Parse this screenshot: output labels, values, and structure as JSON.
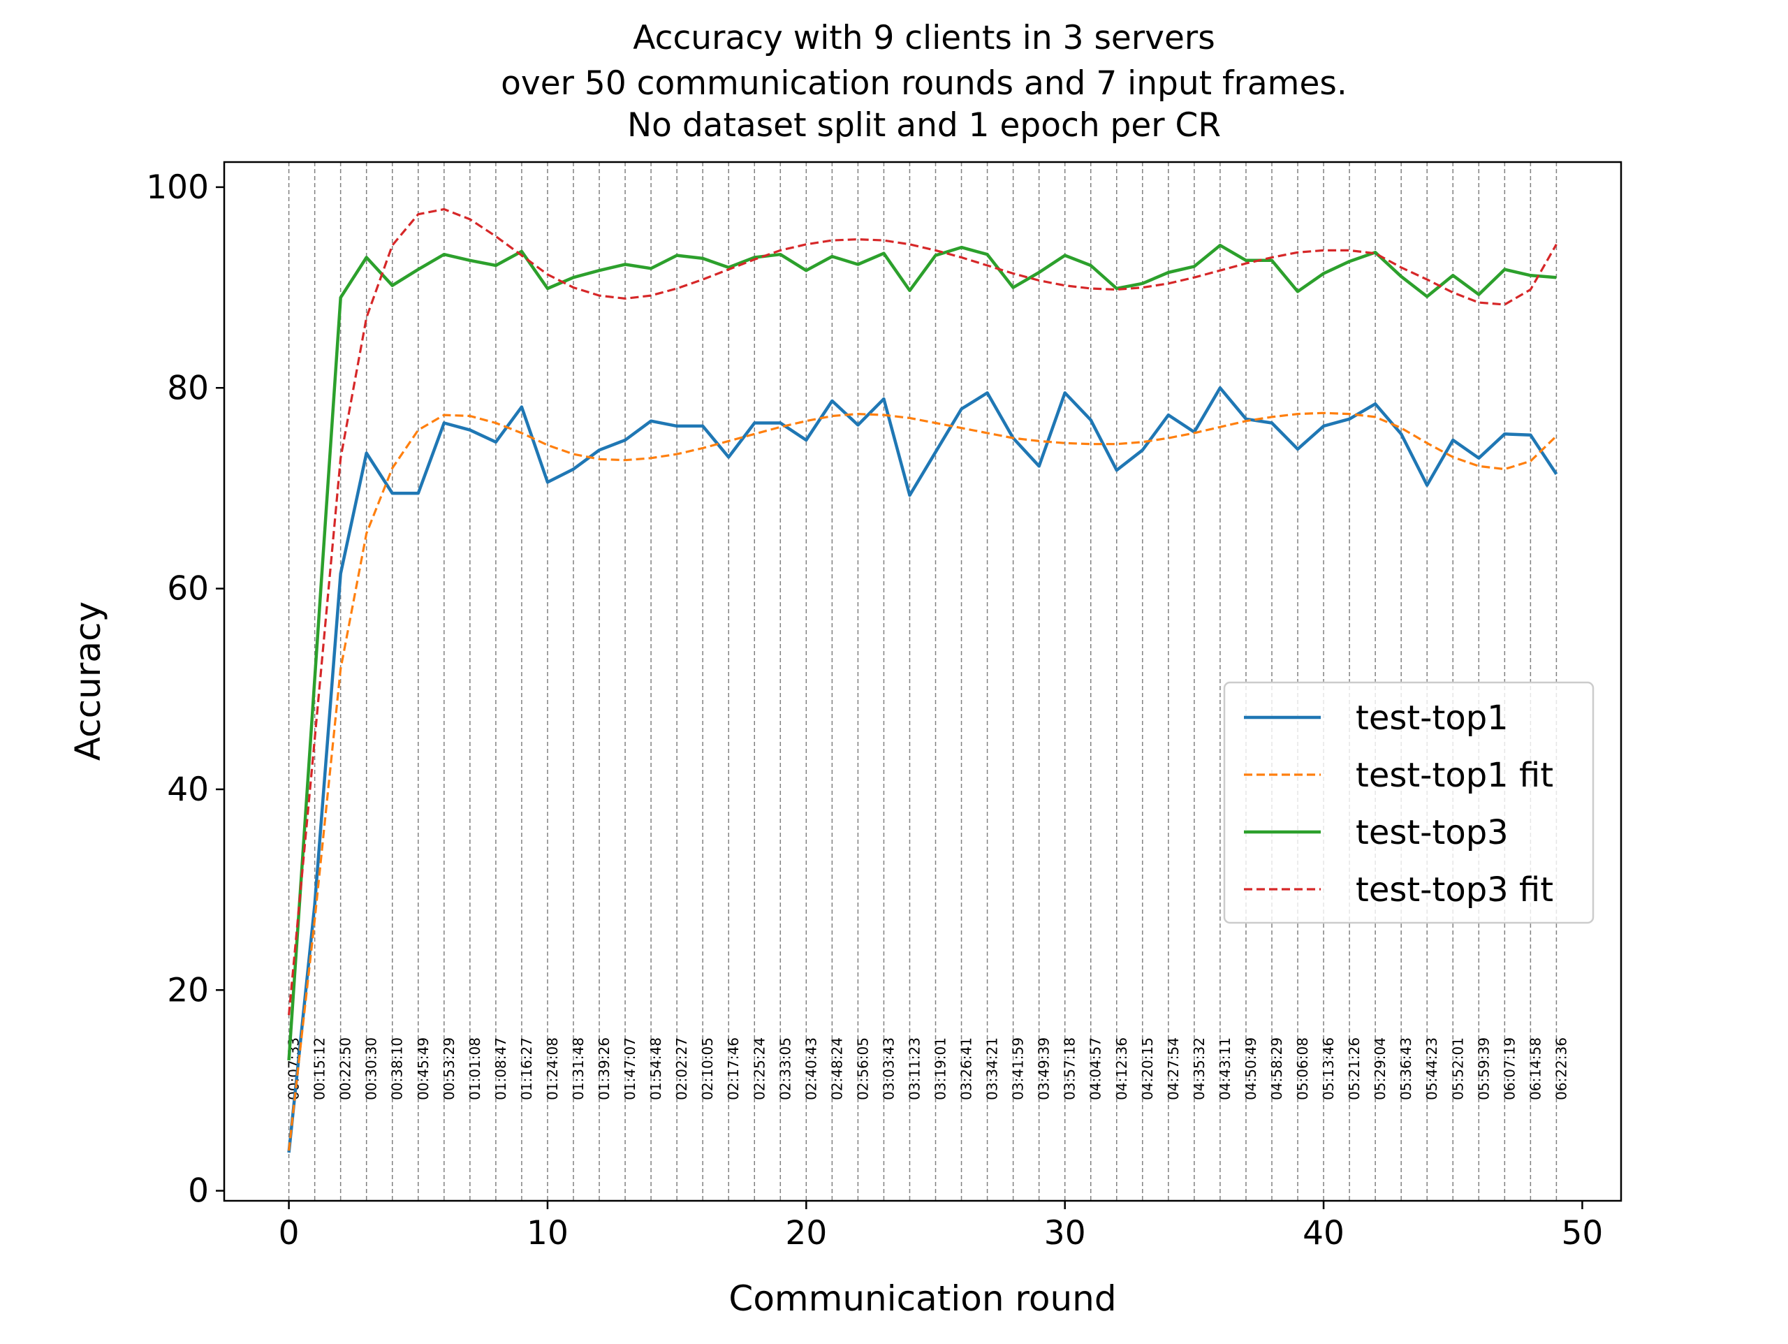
{
  "chart_data": {
    "type": "line",
    "title": "Accuracy with 9 clients in 3 servers\nover 50 communication rounds and 7 input frames.\nNo dataset split and 1 epoch per CR",
    "xlabel": "Communication round",
    "ylabel": "Accuracy",
    "xlim": [
      -2.5,
      51.5
    ],
    "ylim": [
      -1,
      102.5
    ],
    "xticks": [
      0,
      10,
      20,
      30,
      40,
      50
    ],
    "yticks": [
      0,
      20,
      40,
      60,
      80,
      100
    ],
    "grid": "vertical dashed lines at each communication round",
    "legend_position": "center-right",
    "x": [
      0,
      1,
      2,
      3,
      4,
      5,
      6,
      7,
      8,
      9,
      10,
      11,
      12,
      13,
      14,
      15,
      16,
      17,
      18,
      19,
      20,
      21,
      22,
      23,
      24,
      25,
      26,
      27,
      28,
      29,
      30,
      31,
      32,
      33,
      34,
      35,
      36,
      37,
      38,
      39,
      40,
      41,
      42,
      43,
      44,
      45,
      46,
      47,
      48,
      49
    ],
    "series": [
      {
        "name": "test-top1",
        "style": "solid",
        "color": "#1f77b4",
        "values": [
          3.8,
          28.5,
          61.5,
          73.5,
          69.5,
          69.5,
          76.5,
          75.8,
          74.6,
          78.1,
          70.6,
          71.9,
          73.8,
          74.8,
          76.7,
          76.2,
          76.2,
          73.1,
          76.5,
          76.5,
          74.8,
          78.7,
          76.3,
          78.9,
          69.3,
          73.6,
          77.9,
          79.5,
          75.0,
          72.2,
          79.5,
          76.8,
          71.8,
          73.8,
          77.3,
          75.6,
          80.0,
          76.9,
          76.5,
          73.9,
          76.2,
          76.9,
          78.4,
          75.4,
          70.3,
          74.8,
          73.0,
          75.4,
          75.3,
          71.4
        ]
      },
      {
        "name": "test-top1 fit",
        "style": "dashed",
        "color": "#ff7f0e",
        "values": [
          4.0,
          27.0,
          52.0,
          65.5,
          72.0,
          75.8,
          77.3,
          77.2,
          76.5,
          75.5,
          74.3,
          73.4,
          72.9,
          72.8,
          73.0,
          73.4,
          74.0,
          74.7,
          75.4,
          76.1,
          76.7,
          77.2,
          77.4,
          77.3,
          77.0,
          76.5,
          76.0,
          75.5,
          75.0,
          74.7,
          74.5,
          74.4,
          74.4,
          74.6,
          75.0,
          75.5,
          76.1,
          76.7,
          77.1,
          77.4,
          77.5,
          77.4,
          77.1,
          76.0,
          74.5,
          73.1,
          72.2,
          71.9,
          72.7,
          75.2
        ]
      },
      {
        "name": "test-top3",
        "style": "solid",
        "color": "#2ca02c",
        "values": [
          13.0,
          51.0,
          89.0,
          93.0,
          90.2,
          91.8,
          93.3,
          92.7,
          92.2,
          93.6,
          89.9,
          91.0,
          91.7,
          92.3,
          91.9,
          93.2,
          92.9,
          92.0,
          93.0,
          93.3,
          91.7,
          93.1,
          92.3,
          93.4,
          89.7,
          93.2,
          94.0,
          93.3,
          90.0,
          91.5,
          93.2,
          92.2,
          89.9,
          90.4,
          91.5,
          92.1,
          94.2,
          92.7,
          92.7,
          89.6,
          91.4,
          92.6,
          93.5,
          91.1,
          89.1,
          91.2,
          89.3,
          91.8,
          91.2,
          91.0
        ]
      },
      {
        "name": "test-top3 fit",
        "style": "dashed",
        "color": "#d62728",
        "values": [
          17.5,
          45.0,
          73.0,
          87.0,
          94.2,
          97.3,
          97.8,
          96.8,
          95.1,
          93.2,
          91.3,
          90.0,
          89.2,
          88.9,
          89.2,
          89.9,
          90.8,
          91.8,
          92.8,
          93.7,
          94.3,
          94.7,
          94.8,
          94.7,
          94.3,
          93.7,
          93.0,
          92.2,
          91.4,
          90.7,
          90.2,
          89.9,
          89.8,
          90.0,
          90.4,
          91.0,
          91.7,
          92.4,
          93.0,
          93.5,
          93.7,
          93.7,
          93.4,
          92.0,
          90.8,
          89.5,
          88.5,
          88.3,
          89.8,
          94.3
        ]
      }
    ],
    "annotations": [
      "00:07:33",
      "00:15:12",
      "00:22:50",
      "00:30:30",
      "00:38:10",
      "00:45:49",
      "00:53:29",
      "01:01:08",
      "01:08:47",
      "01:16:27",
      "01:24:08",
      "01:31:48",
      "01:39:26",
      "01:47:07",
      "01:54:48",
      "02:02:27",
      "02:10:05",
      "02:17:46",
      "02:25:24",
      "02:33:05",
      "02:40:43",
      "02:48:24",
      "02:56:05",
      "03:03:43",
      "03:11:23",
      "03:19:01",
      "03:26:41",
      "03:34:21",
      "03:41:59",
      "03:49:39",
      "03:57:18",
      "04:04:57",
      "04:12:36",
      "04:20:15",
      "04:27:54",
      "04:35:32",
      "04:43:11",
      "04:50:49",
      "04:58:29",
      "05:06:08",
      "05:13:46",
      "05:21:26",
      "05:29:04",
      "05:36:43",
      "05:44:23",
      "05:52:01",
      "05:59:39",
      "06:07:19",
      "06:14:58",
      "06:22:36"
    ]
  }
}
